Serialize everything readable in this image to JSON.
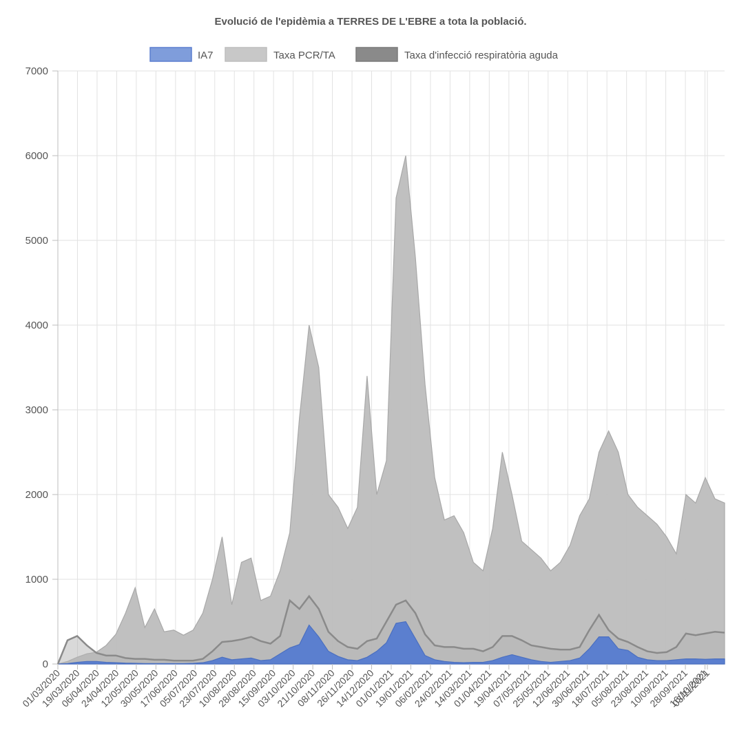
{
  "chart_data": {
    "type": "area",
    "title": "Evolució de l'epidèmia a TERRES DE L'EBRE a tota la població.",
    "xlabel": "",
    "ylabel": "",
    "ylim": [
      0,
      7000
    ],
    "yticks": [
      0,
      1000,
      2000,
      3000,
      4000,
      5000,
      6000,
      7000
    ],
    "grid": true,
    "legend_position": "top",
    "x_tick_labels": [
      "01/03/2020",
      "19/03/2020",
      "06/04/2020",
      "24/04/2020",
      "12/05/2020",
      "30/05/2020",
      "17/06/2020",
      "05/07/2020",
      "23/07/2020",
      "10/08/2020",
      "28/08/2020",
      "15/09/2020",
      "03/10/2020",
      "21/10/2020",
      "08/11/2020",
      "26/11/2020",
      "14/12/2020",
      "01/01/2021",
      "19/01/2021",
      "06/02/2021",
      "24/02/2021",
      "14/03/2021",
      "01/04/2021",
      "19/04/2021",
      "07/05/2021",
      "25/05/2021",
      "12/06/2021",
      "30/06/2021",
      "18/07/2021",
      "05/08/2021",
      "23/08/2021",
      "10/09/2021",
      "28/09/2021",
      "16/10/2021",
      "03/11/2021"
    ],
    "x": [
      "01/03/2020",
      "10/03/2020",
      "19/03/2020",
      "28/03/2020",
      "06/04/2020",
      "15/04/2020",
      "24/04/2020",
      "03/05/2020",
      "12/05/2020",
      "21/05/2020",
      "30/05/2020",
      "08/06/2020",
      "17/06/2020",
      "26/06/2020",
      "05/07/2020",
      "14/07/2020",
      "23/07/2020",
      "01/08/2020",
      "10/08/2020",
      "19/08/2020",
      "28/08/2020",
      "06/09/2020",
      "15/09/2020",
      "24/09/2020",
      "03/10/2020",
      "12/10/2020",
      "21/10/2020",
      "30/10/2020",
      "08/11/2020",
      "17/11/2020",
      "26/11/2020",
      "05/12/2020",
      "14/12/2020",
      "23/12/2020",
      "01/01/2021",
      "10/01/2021",
      "19/01/2021",
      "28/01/2021",
      "06/02/2021",
      "15/02/2021",
      "24/02/2021",
      "05/03/2021",
      "14/03/2021",
      "23/03/2021",
      "01/04/2021",
      "10/04/2021",
      "19/04/2021",
      "28/04/2021",
      "07/05/2021",
      "16/05/2021",
      "25/05/2021",
      "03/06/2021",
      "12/06/2021",
      "21/06/2021",
      "30/06/2021",
      "09/07/2021",
      "18/07/2021",
      "27/07/2021",
      "05/08/2021",
      "14/08/2021",
      "23/08/2021",
      "01/09/2021",
      "10/09/2021",
      "19/09/2021",
      "28/09/2021",
      "07/10/2021",
      "16/10/2021",
      "25/10/2021",
      "03/11/2021",
      "08/11/2021"
    ],
    "series": [
      {
        "name": "IA7",
        "color": "#5b7fcf",
        "fill": "#5b7fcf",
        "values": [
          0,
          5,
          20,
          30,
          30,
          20,
          15,
          10,
          8,
          5,
          5,
          5,
          5,
          5,
          8,
          15,
          40,
          80,
          50,
          60,
          70,
          40,
          50,
          120,
          190,
          230,
          460,
          320,
          150,
          90,
          50,
          40,
          80,
          150,
          250,
          480,
          500,
          300,
          100,
          50,
          30,
          20,
          15,
          20,
          20,
          40,
          80,
          110,
          80,
          50,
          30,
          20,
          30,
          40,
          70,
          180,
          320,
          320,
          180,
          160,
          80,
          50,
          40,
          40,
          50,
          60,
          60,
          55,
          60,
          60
        ]
      },
      {
        "name": "Taxa PCR/TA",
        "color": "#bdbdbd",
        "fill": "#bdbdbd",
        "values": [
          0,
          30,
          80,
          120,
          140,
          220,
          350,
          600,
          900,
          430,
          650,
          380,
          400,
          340,
          400,
          600,
          1000,
          1500,
          700,
          1200,
          1250,
          750,
          800,
          1100,
          1550,
          2900,
          4000,
          3500,
          2000,
          1850,
          1600,
          1850,
          3400,
          2000,
          2400,
          5500,
          6000,
          4800,
          3300,
          2200,
          1700,
          1750,
          1550,
          1200,
          1100,
          1600,
          2500,
          2000,
          1450,
          1350,
          1250,
          1100,
          1200,
          1400,
          1750,
          1950,
          2500,
          2750,
          2500,
          2000,
          1850,
          1750,
          1650,
          1500,
          1300,
          2000,
          1900,
          2200,
          1950,
          1900
        ]
      },
      {
        "name": "Taxa d'infecció respiratòria aguda",
        "color": "#8a8a8a",
        "fill": "#8a8a8a",
        "values": [
          0,
          280,
          330,
          220,
          130,
          100,
          100,
          70,
          60,
          60,
          50,
          50,
          40,
          40,
          40,
          60,
          150,
          260,
          270,
          290,
          320,
          270,
          240,
          330,
          750,
          650,
          800,
          650,
          380,
          270,
          200,
          180,
          270,
          300,
          500,
          700,
          750,
          600,
          350,
          220,
          200,
          200,
          180,
          180,
          150,
          200,
          330,
          330,
          280,
          220,
          200,
          180,
          170,
          170,
          200,
          400,
          580,
          400,
          300,
          260,
          200,
          150,
          130,
          140,
          200,
          360,
          340,
          360,
          380,
          370
        ]
      }
    ]
  }
}
